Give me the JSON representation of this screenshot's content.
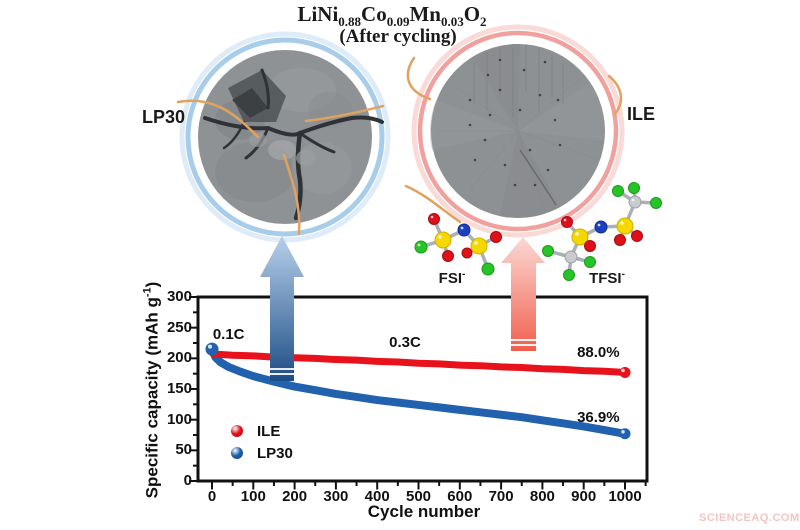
{
  "page": {
    "background": "#ffffff",
    "watermark": "SCIENCEAQ.COM"
  },
  "header": {
    "formula_plain": "LiNi0.88Co0.09Mn0.03O2",
    "formula_segments": [
      [
        "LiNi",
        "0.88"
      ],
      [
        "Co",
        "0.09"
      ],
      [
        "Mn",
        "0.03"
      ],
      [
        "O",
        "2"
      ]
    ],
    "subtitle": "(After cycling)"
  },
  "images": {
    "left": {
      "label": "LP30",
      "ring_color": "#a8cdea",
      "description_colors": {
        "particle": "#8f9295",
        "crack": "#2f3236"
      }
    },
    "right": {
      "label": "ILE",
      "ring_color": "#f0a19e",
      "description_colors": {
        "particle": "#8e9194"
      }
    },
    "annotation_line_color": "#e2a25f"
  },
  "molecules": {
    "fsi": {
      "label": "FSI",
      "charge": "-"
    },
    "tfsi": {
      "label": "TFSI",
      "charge": "-"
    },
    "atom_colors": {
      "S": "#f5d800",
      "O": "#de1019",
      "N": "#1b3fbf",
      "F": "#27c427",
      "C": "#c9ccce"
    }
  },
  "arrows": {
    "blue_gradient": [
      "#b7d0ea",
      "#1d4d86"
    ],
    "pink_gradient": [
      "#fbd9d5",
      "#f15f4d"
    ]
  },
  "chart_data": {
    "type": "line",
    "xlabel": "Cycle number",
    "ylabel_pre": "Specific capacity (mAh g",
    "ylabel_sup": "-1",
    "ylabel_post": ")",
    "xlim": [
      -34,
      1053
    ],
    "ylim": [
      0,
      300
    ],
    "x_ticks": [
      0,
      100,
      200,
      300,
      400,
      500,
      600,
      700,
      800,
      900,
      1000
    ],
    "y_ticks": [
      0,
      50,
      100,
      150,
      200,
      250,
      300
    ],
    "x_minor_step": 50,
    "y_minor_step": 25,
    "grid": false,
    "legend_position": "lower-left-inside",
    "annotations": [
      {
        "text": "0.1C",
        "x_cycle": 2,
        "y_capacity_top": 253
      },
      {
        "text": "0.3C",
        "x_cycle": 429,
        "y_capacity_top": 240
      },
      {
        "text": "88.0%",
        "x_cycle": 884,
        "y_capacity_top": 223
      },
      {
        "text": "36.9%",
        "x_cycle": 884,
        "y_capacity_top": 117
      }
    ],
    "series": [
      {
        "name": "LP30",
        "color": "#2161ae",
        "retention": "36.9%",
        "rate_segments": [
          "0.1C",
          "0.3C"
        ],
        "x": [
          0,
          8,
          20,
          40,
          70,
          100,
          150,
          200,
          250,
          300,
          350,
          400,
          450,
          500,
          550,
          600,
          650,
          700,
          750,
          800,
          850,
          900,
          950,
          1000
        ],
        "y": [
          215,
          202,
          194,
          186,
          178,
          171,
          162,
          154,
          148,
          142,
          137,
          132,
          128,
          124,
          120,
          116,
          112,
          108,
          104,
          99,
          94,
          89,
          83,
          77
        ]
      },
      {
        "name": "ILE",
        "color": "#e8121c",
        "retention": "88.0%",
        "rate_segments": [
          "0.1C",
          "0.3C"
        ],
        "x": [
          3,
          50,
          100,
          150,
          200,
          250,
          300,
          350,
          400,
          450,
          500,
          550,
          600,
          650,
          700,
          750,
          800,
          850,
          900,
          950,
          1000
        ],
        "y": [
          207,
          205,
          204,
          202,
          201,
          200,
          198,
          197,
          195,
          194,
          192,
          191,
          189,
          188,
          186,
          185,
          183,
          182,
          180,
          179,
          177
        ]
      }
    ],
    "legend": [
      {
        "label": "ILE",
        "color": "#e8121c",
        "color_dark": "#9c0a10"
      },
      {
        "label": "LP30",
        "color": "#2161ae",
        "color_dark": "#143e78"
      }
    ]
  }
}
